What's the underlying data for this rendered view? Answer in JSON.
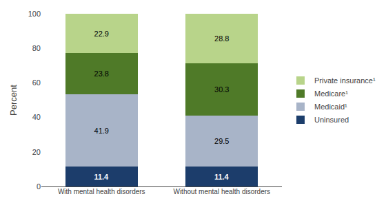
{
  "chart_data": {
    "type": "bar",
    "stacked": true,
    "categories": [
      "With mental health disorders",
      "Without mental health disorders"
    ],
    "series": [
      {
        "name": "Uninsured",
        "color": "#1c3d6b",
        "values": [
          11.4,
          11.4
        ]
      },
      {
        "name": "Medicaid¹",
        "color": "#a8b4c8",
        "values": [
          41.9,
          29.5
        ]
      },
      {
        "name": "Medicare¹",
        "color": "#4f7a28",
        "values": [
          23.8,
          30.3
        ]
      },
      {
        "name": "Private insurance¹",
        "color": "#b8d48a",
        "values": [
          22.9,
          28.8
        ]
      }
    ],
    "ylabel": "Percent",
    "ylim": [
      0,
      100
    ],
    "yticks": [
      0,
      20,
      40,
      60,
      80,
      100
    ],
    "data_labels": true,
    "legend": "right",
    "grid": false
  }
}
